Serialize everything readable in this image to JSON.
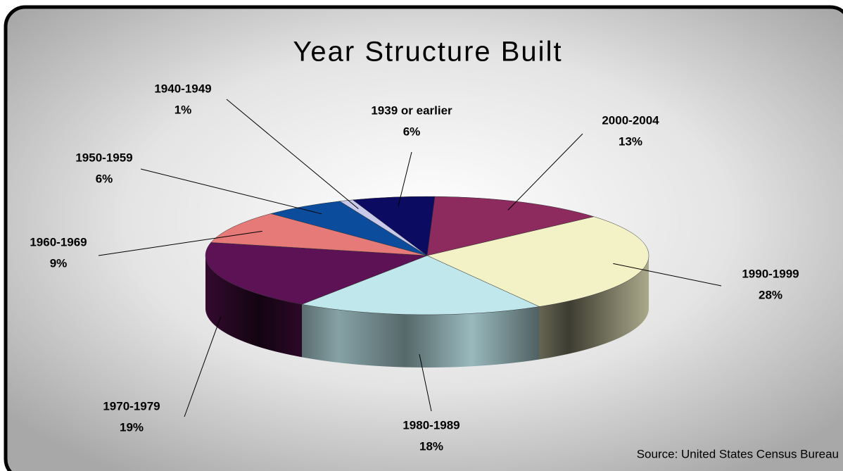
{
  "chart_data": {
    "type": "pie3d",
    "title": "Year Structure Built",
    "categories": [
      "2000-2004",
      "1990-1999",
      "1980-1989",
      "1970-1979",
      "1960-1969",
      "1950-1959",
      "1940-1949",
      "1939 or earlier"
    ],
    "values": [
      13,
      28,
      18,
      19,
      9,
      6,
      1,
      6
    ],
    "value_labels": [
      "13%",
      "28%",
      "18%",
      "19%",
      "9%",
      "6%",
      "1%",
      "6%"
    ],
    "colors": [
      "#8e2b5e",
      "#f3f1c6",
      "#bfe7ec",
      "#5c1254",
      "#e57a78",
      "#0b4c9c",
      "#c9c9ea",
      "#0c0b62"
    ],
    "annotation": "Source: United States Census Bureau"
  }
}
